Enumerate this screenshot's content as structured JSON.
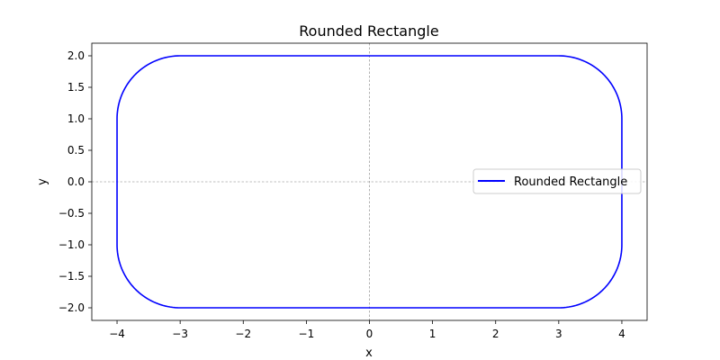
{
  "chart_data": {
    "type": "line",
    "title": "Rounded Rectangle",
    "xlabel": "x",
    "ylabel": "y",
    "xlim": [
      -4.4,
      4.4
    ],
    "ylim": [
      -2.2,
      2.2
    ],
    "xticks": [
      -4,
      -3,
      -2,
      -1,
      0,
      1,
      2,
      3,
      4
    ],
    "xtick_labels": [
      "−4",
      "−3",
      "−2",
      "−1",
      "0",
      "1",
      "2",
      "3",
      "4"
    ],
    "yticks": [
      -2.0,
      -1.5,
      -1.0,
      -0.5,
      0.0,
      0.5,
      1.0,
      1.5,
      2.0
    ],
    "ytick_labels": [
      "−2.0",
      "−1.5",
      "−1.0",
      "−0.5",
      "0.0",
      "0.5",
      "1.0",
      "1.5",
      "2.0"
    ],
    "grid": false,
    "reference_lines": {
      "x": 0,
      "y": 0,
      "style": "dashed",
      "color": "#808080"
    },
    "legend": {
      "placement": "right",
      "entries": [
        "Rounded Rectangle"
      ]
    },
    "series": [
      {
        "name": "Rounded Rectangle",
        "color": "#0000ff",
        "shape": {
          "x_min": -4,
          "x_max": 4,
          "y_min": -2,
          "y_max": 2,
          "corner_radius": 1
        }
      }
    ]
  }
}
